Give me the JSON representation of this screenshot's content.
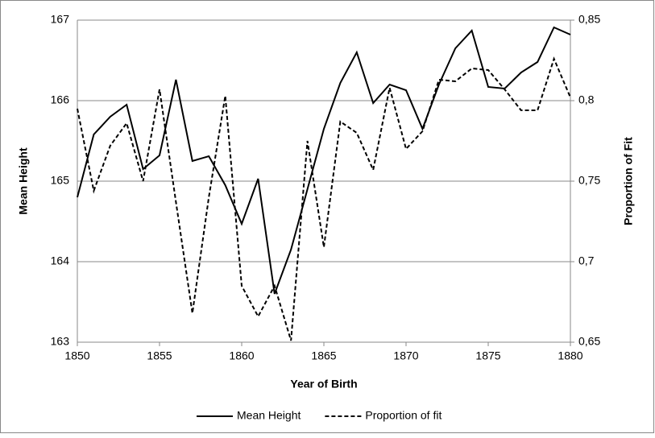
{
  "chart_data": {
    "type": "line",
    "x_label": "Year of Birth",
    "y_label": "Mean Height",
    "y2_label": "Proportion of Fit",
    "x": [
      1850,
      1851,
      1852,
      1853,
      1854,
      1855,
      1856,
      1857,
      1858,
      1859,
      1860,
      1861,
      1862,
      1863,
      1864,
      1865,
      1866,
      1867,
      1868,
      1869,
      1870,
      1871,
      1872,
      1873,
      1874,
      1875,
      1876,
      1877,
      1878,
      1879,
      1880
    ],
    "series": [
      {
        "name": "Mean Height",
        "color": "#000000",
        "linestyle": "solid",
        "values": [
          164.8,
          165.58,
          165.8,
          165.95,
          165.15,
          165.32,
          166.26,
          165.25,
          165.31,
          164.95,
          164.47,
          165.03,
          163.6,
          164.15,
          164.9,
          165.65,
          166.22,
          166.6,
          165.97,
          166.2,
          166.13,
          165.65,
          166.2,
          166.65,
          166.87,
          166.17,
          166.15,
          166.35,
          166.48,
          166.91,
          166.82
        ]
      },
      {
        "name": "Proportion of fit",
        "color": "#000000",
        "linestyle": "dashed",
        "axis": "y2",
        "values": [
          0.795,
          0.744,
          0.772,
          0.786,
          0.75,
          0.807,
          0.737,
          0.668,
          0.74,
          0.803,
          0.685,
          0.666,
          0.685,
          0.651,
          0.775,
          0.709,
          0.787,
          0.78,
          0.757,
          0.808,
          0.77,
          0.781,
          0.813,
          0.812,
          0.82,
          0.819,
          0.807,
          0.794,
          0.794,
          0.826,
          0.802
        ]
      }
    ],
    "xlim": [
      1850,
      1880
    ],
    "xticks": [
      1850,
      1855,
      1860,
      1865,
      1870,
      1875,
      1880
    ],
    "ylim": [
      163,
      167
    ],
    "yticks": [
      163,
      164,
      165,
      166,
      167
    ],
    "y2lim": [
      0.65,
      0.85
    ],
    "y2ticks": [
      {
        "value": 0.65,
        "label": "0,65"
      },
      {
        "value": 0.7,
        "label": "0,7"
      },
      {
        "value": 0.75,
        "label": "0,75"
      },
      {
        "value": 0.8,
        "label": "0,8"
      },
      {
        "value": 0.85,
        "label": "0,85"
      }
    ],
    "grid": true,
    "legend": "bottom"
  }
}
